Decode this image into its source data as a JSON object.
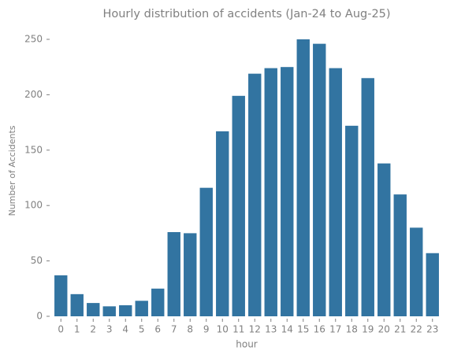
{
  "chart_data": {
    "type": "bar",
    "title": "Hourly distribution of accidents (Jan-24 to Aug-25)",
    "x_label": "hour",
    "y_label": "Number of Accidents",
    "categories": [
      "0",
      "1",
      "2",
      "3",
      "4",
      "5",
      "6",
      "7",
      "8",
      "9",
      "10",
      "11",
      "12",
      "13",
      "14",
      "15",
      "16",
      "17",
      "18",
      "19",
      "20",
      "21",
      "22",
      "23"
    ],
    "values": [
      37,
      20,
      12,
      9,
      10,
      14,
      25,
      76,
      75,
      116,
      167,
      199,
      219,
      224,
      225,
      250,
      246,
      224,
      172,
      215,
      138,
      110,
      80,
      57
    ],
    "color": "#3274a1",
    "ylim": [
      0,
      262.5
    ],
    "yticks": [
      0,
      50,
      100,
      150,
      200,
      250
    ],
    "grid": false
  }
}
